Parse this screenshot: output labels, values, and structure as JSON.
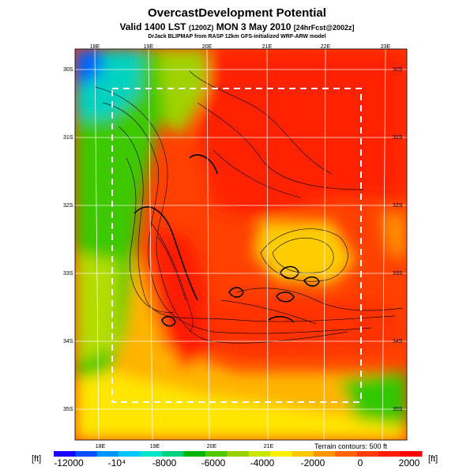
{
  "header": {
    "title": "OvercastDevelopment Potential",
    "subtitle_main": "Valid 1400 LST",
    "subtitle_utc": "(1200Z)",
    "subtitle_date": "MON 3 May 2010",
    "subtitle_fcst": "[24hrFcst@2002z]",
    "credit": "DrJack BLIPMAP from RASP 12km GFS-initialized WRF-ARW model"
  },
  "axes": {
    "lon_top": [
      "18E",
      "19E",
      "20E",
      "21E",
      "22E",
      "23E"
    ],
    "lon_bottom": [
      "18E",
      "19E",
      "20E",
      "21E"
    ],
    "lat_left": [
      "30S",
      "31S",
      "32S",
      "33S",
      "34S",
      "35S"
    ],
    "lat_right": [
      "30S",
      "31S",
      "32S",
      "33S",
      "34S",
      "35S"
    ]
  },
  "colorbar": {
    "unit_left": "[ft]",
    "unit_right": "[ft]",
    "terrain_note": "Terrain contours: 500 ft",
    "tick_labels": [
      "-12000",
      "-10⁴",
      "-8000",
      "-6000",
      "-4000",
      "-2000",
      "0",
      "2000"
    ],
    "colors": [
      "#1a00ff",
      "#0050ff",
      "#0096ff",
      "#00c8ff",
      "#00e6c8",
      "#00d27d",
      "#00b400",
      "#50c800",
      "#96d200",
      "#c8e600",
      "#fff000",
      "#ffc800",
      "#ff9600",
      "#ff6400",
      "#ff3c00",
      "#ff1e00",
      "#ff0000"
    ]
  },
  "legend_colors": {
    "deep_red": "#ff2000",
    "orange": "#ff6a00",
    "yellow": "#ffd000",
    "green": "#2ec800",
    "cyan": "#00d8d8",
    "blue": "#1a40ff"
  }
}
